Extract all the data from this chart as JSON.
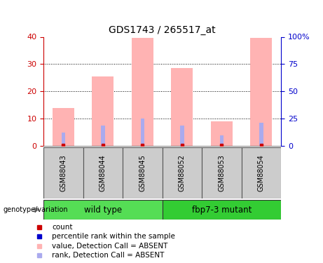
{
  "title": "GDS1743 / 265517_at",
  "samples": [
    "GSM88043",
    "GSM88044",
    "GSM88045",
    "GSM88052",
    "GSM88053",
    "GSM88054"
  ],
  "pink_bar_heights": [
    14.0,
    25.5,
    39.5,
    28.5,
    9.0,
    39.5
  ],
  "blue_bar_heights": [
    5.0,
    7.5,
    10.0,
    7.5,
    4.0,
    8.5
  ],
  "ylim": [
    0,
    40
  ],
  "y2lim": [
    0,
    100
  ],
  "yticks": [
    0,
    10,
    20,
    30,
    40
  ],
  "y2ticks": [
    0,
    25,
    50,
    75,
    100
  ],
  "y2ticklabels": [
    "0",
    "25",
    "50",
    "75",
    "100%"
  ],
  "groups": [
    {
      "label": "wild type",
      "indices": [
        0,
        1,
        2
      ],
      "color": "#55dd55"
    },
    {
      "label": "fbp7-3 mutant",
      "indices": [
        3,
        4,
        5
      ],
      "color": "#33cc33"
    }
  ],
  "pink_color": "#ffb3b3",
  "blue_color": "#aaaaee",
  "red_color": "#cc0000",
  "blue_marker_color": "#0000cc",
  "left_axis_color": "#cc0000",
  "right_axis_color": "#0000cc",
  "legend_items": [
    {
      "label": "count",
      "color": "#cc0000"
    },
    {
      "label": "percentile rank within the sample",
      "color": "#0000cc"
    },
    {
      "label": "value, Detection Call = ABSENT",
      "color": "#ffb3b3"
    },
    {
      "label": "rank, Detection Call = ABSENT",
      "color": "#aaaaee"
    }
  ],
  "genotype_label": "genotype/variation",
  "sample_box_color": "#cccccc",
  "grid_color": "#000000",
  "bar_width": 0.55,
  "blue_bar_width": 0.1
}
